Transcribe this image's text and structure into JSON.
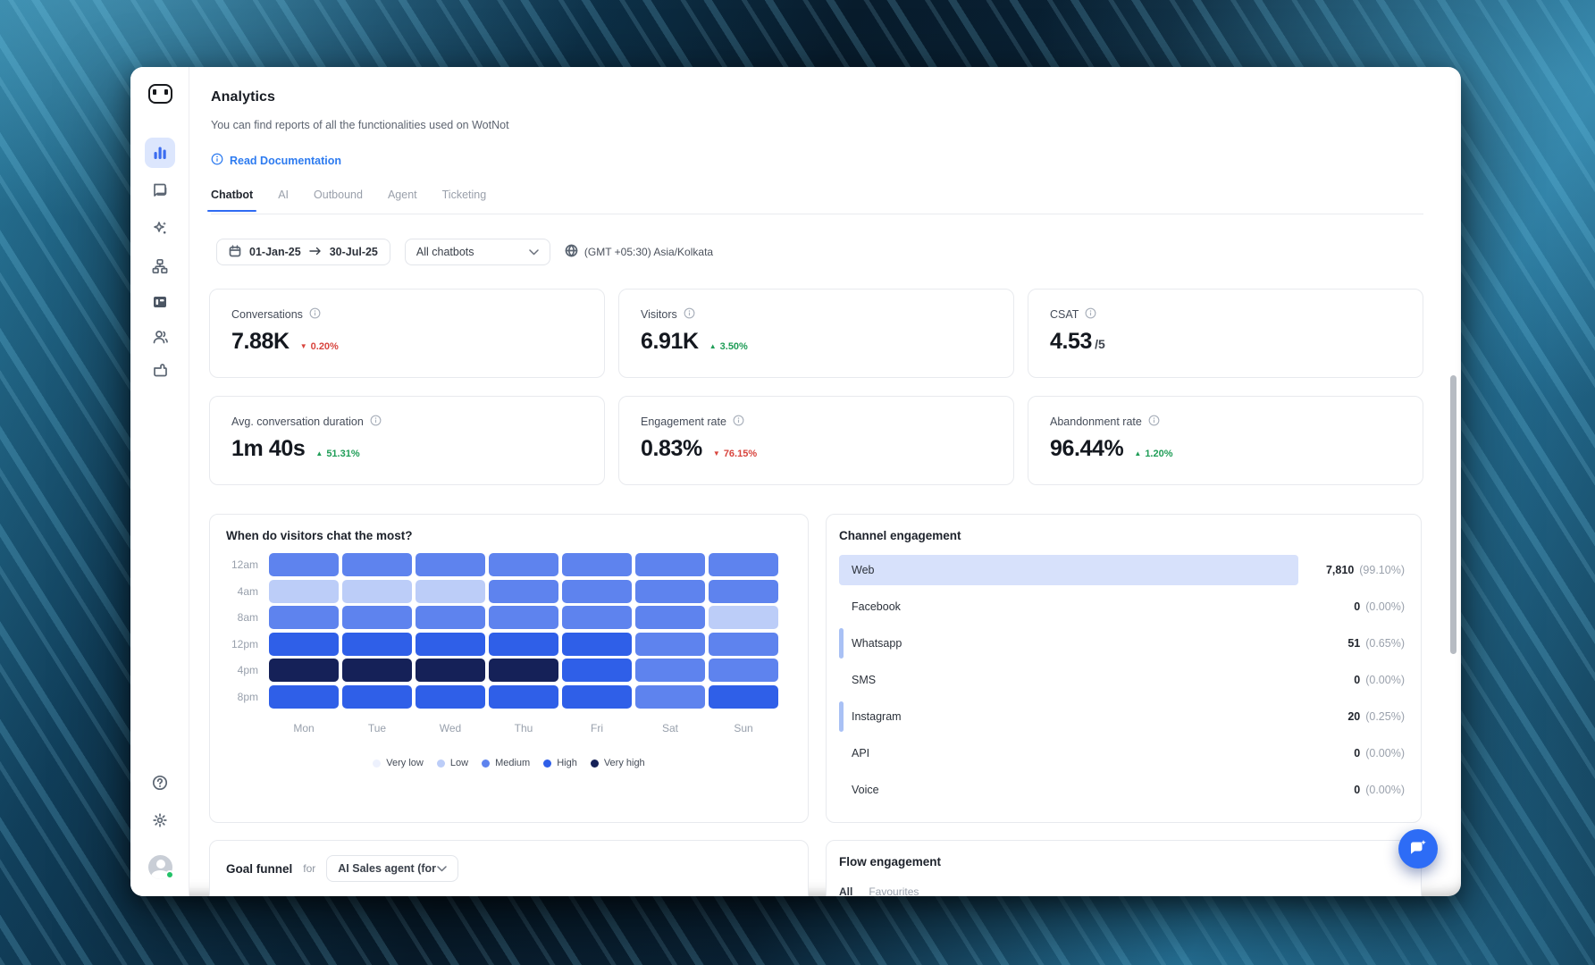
{
  "colors": {
    "accent": "#2f6bf3",
    "green": "#1f9d57",
    "red": "#d8453e",
    "active_nav_bg": "#dce6fd",
    "bar_large": "#d7e1fb",
    "bar_small": "#a9c1f5"
  },
  "sidebar": {
    "items": [
      {
        "icon": "analytics-icon",
        "active": true
      },
      {
        "icon": "conversations-icon",
        "active": false
      },
      {
        "icon": "ai-sparkles-icon",
        "active": false
      },
      {
        "icon": "bot-builder-icon",
        "active": false
      },
      {
        "icon": "templates-icon",
        "active": false
      },
      {
        "icon": "contacts-icon",
        "active": false
      },
      {
        "icon": "integrations-icon",
        "active": false
      }
    ],
    "footer": [
      {
        "icon": "help-icon"
      },
      {
        "icon": "settings-gear-icon"
      },
      {
        "icon": "user-avatar"
      }
    ]
  },
  "header": {
    "title": "Analytics",
    "subtitle": "You can find reports of all the functionalities used on WotNot",
    "doc_link": "Read Documentation"
  },
  "tabs": {
    "items": [
      {
        "label": "Chatbot",
        "active": true
      },
      {
        "label": "AI",
        "active": false
      },
      {
        "label": "Outbound",
        "active": false
      },
      {
        "label": "Agent",
        "active": false
      },
      {
        "label": "Ticketing",
        "active": false
      }
    ]
  },
  "filters": {
    "date_start": "01-Jan-25",
    "date_end": "30-Jul-25",
    "bot_select": "All chatbots",
    "timezone": "(GMT +05:30) Asia/Kolkata"
  },
  "stats": {
    "cards": [
      {
        "label": "Conversations",
        "value": "7.88K",
        "delta": "0.20%",
        "dir": "down"
      },
      {
        "label": "Visitors",
        "value": "6.91K",
        "delta": "3.50%",
        "dir": "up"
      },
      {
        "label": "CSAT",
        "value": "4.53",
        "suffix": "/5"
      },
      {
        "label": "Avg. conversation duration",
        "value": "1m 40s",
        "delta": "51.31%",
        "dir": "up"
      },
      {
        "label": "Engagement rate",
        "value": "0.83%",
        "delta": "76.15%",
        "dir": "down"
      },
      {
        "label": "Abandonment rate",
        "value": "96.44%",
        "delta": "1.20%",
        "dir": "up"
      }
    ]
  },
  "goal_funnel": {
    "title": "Goal funnel",
    "for_label": "for",
    "select": "AI Sales agent (for we..."
  },
  "flow_engagement": {
    "title": "Flow engagement",
    "tabs": [
      "All",
      "Favourites"
    ]
  },
  "chart_data": [
    {
      "type": "heatmap",
      "title": "When do visitors chat the most?",
      "x": [
        "Mon",
        "Tue",
        "Wed",
        "Thu",
        "Fri",
        "Sat",
        "Sun"
      ],
      "y": [
        "12am",
        "4am",
        "8am",
        "12pm",
        "4pm",
        "8pm"
      ],
      "levels": [
        "Very low",
        "Low",
        "Medium",
        "High",
        "Very high"
      ],
      "level_colors": [
        "#edf1fd",
        "#bccdf8",
        "#5e83ee",
        "#2f5fe8",
        "#152158"
      ],
      "values": [
        [
          3,
          3,
          3,
          3,
          3,
          3,
          3
        ],
        [
          2,
          2,
          2,
          3,
          3,
          3,
          3
        ],
        [
          3,
          3,
          3,
          3,
          3,
          3,
          2
        ],
        [
          4,
          4,
          4,
          4,
          4,
          3,
          3
        ],
        [
          5,
          5,
          5,
          5,
          4,
          3,
          3
        ],
        [
          4,
          4,
          4,
          4,
          4,
          3,
          4
        ]
      ],
      "legend_position": "bottom"
    },
    {
      "type": "bar",
      "title": "Channel engagement",
      "categories": [
        "Web",
        "Facebook",
        "Whatsapp",
        "SMS",
        "Instagram",
        "API",
        "Voice"
      ],
      "values": [
        7810,
        0,
        51,
        0,
        20,
        0,
        0
      ],
      "labels": [
        "7,810",
        "0",
        "51",
        "0",
        "20",
        "0",
        "0"
      ],
      "percents": [
        "(99.10%)",
        "(0.00%)",
        "(0.65%)",
        "(0.00%)",
        "(0.25%)",
        "(0.00%)",
        "(0.00%)"
      ],
      "percent_values": [
        99.1,
        0,
        0.65,
        0,
        0.25,
        0,
        0
      ]
    }
  ]
}
